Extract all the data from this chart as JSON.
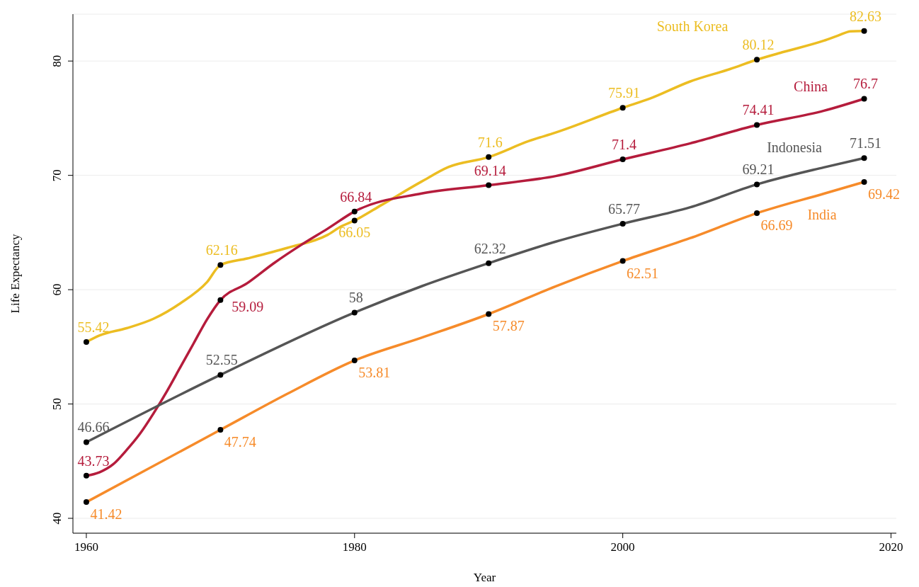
{
  "chart_data": {
    "type": "line",
    "xlabel": "Year",
    "ylabel": "Life Expectancy",
    "xlim": [
      1959,
      2020.4
    ],
    "xticks": [
      1960,
      1980,
      2000,
      2020
    ],
    "ylim": [
      38.7,
      84.1
    ],
    "yticks": [
      40,
      50,
      60,
      70,
      80
    ],
    "grid": "y",
    "line_style": "solid",
    "series": [
      {
        "name": "South Korea",
        "color": "#ecbd22",
        "x": [
          1960,
          1961,
          1963,
          1965,
          1967,
          1969,
          1970,
          1972,
          1975,
          1978,
          1979,
          1980,
          1982,
          1985,
          1987,
          1990,
          1993,
          1995,
          2000,
          2002,
          2005,
          2008,
          2010,
          2012,
          2015,
          2016,
          2017,
          2018
        ],
        "values": [
          55.42,
          56.0,
          56.63,
          57.45,
          58.8,
          60.66,
          62.16,
          62.73,
          63.66,
          64.8,
          65.53,
          66.05,
          67.4,
          69.46,
          70.73,
          71.6,
          73.0,
          73.75,
          75.91,
          76.7,
          78.2,
          79.3,
          80.12,
          80.8,
          81.78,
          82.2,
          82.6,
          82.63
        ],
        "value_labels": [
          "55.42",
          null,
          null,
          null,
          null,
          null,
          "62.16",
          null,
          null,
          null,
          null,
          "66.05",
          null,
          null,
          null,
          "71.6",
          null,
          null,
          "75.91",
          null,
          null,
          null,
          "80.12",
          null,
          null,
          null,
          null,
          "82.63"
        ]
      },
      {
        "name": "China",
        "color": "#b51c3c",
        "x": [
          1960,
          1961,
          1962,
          1963,
          1964,
          1965,
          1966,
          1967,
          1968,
          1969,
          1970,
          1972,
          1974,
          1976,
          1978,
          1980,
          1985,
          1990,
          1995,
          2000,
          2005,
          2010,
          2015,
          2018
        ],
        "values": [
          43.73,
          44.04,
          44.73,
          45.97,
          47.4,
          49.16,
          51.1,
          53.2,
          55.3,
          57.4,
          59.09,
          60.57,
          62.33,
          63.9,
          65.34,
          66.84,
          68.41,
          69.14,
          69.94,
          71.4,
          72.79,
          74.41,
          75.65,
          76.7
        ],
        "value_labels": [
          "43.73",
          null,
          null,
          null,
          null,
          null,
          null,
          null,
          null,
          null,
          "59.09",
          null,
          null,
          null,
          null,
          "66.84",
          null,
          "69.14",
          null,
          "71.4",
          null,
          "74.41",
          null,
          "76.7"
        ]
      },
      {
        "name": "Indonesia",
        "color": "#555555",
        "x": [
          1960,
          1970,
          1980,
          1985,
          1990,
          1995,
          2000,
          2005,
          2010,
          2015,
          2018
        ],
        "values": [
          46.66,
          52.55,
          58,
          60.3,
          62.32,
          64.2,
          65.77,
          67.2,
          69.21,
          70.7,
          71.51
        ],
        "value_labels": [
          "46.66",
          "52.55",
          "58",
          null,
          "62.32",
          null,
          "65.77",
          null,
          "69.21",
          null,
          "71.51"
        ]
      },
      {
        "name": "India",
        "color": "#f68b2a",
        "x": [
          1960,
          1970,
          1975,
          1980,
          1985,
          1990,
          1995,
          2000,
          2005,
          2010,
          2015,
          2018
        ],
        "values": [
          41.42,
          47.74,
          50.9,
          53.81,
          55.8,
          57.87,
          60.3,
          62.51,
          64.5,
          66.69,
          68.4,
          69.42
        ],
        "value_labels": [
          "41.42",
          "47.74",
          null,
          "53.81",
          null,
          "57.87",
          null,
          "62.51",
          null,
          "66.69",
          null,
          "69.42"
        ]
      }
    ]
  }
}
